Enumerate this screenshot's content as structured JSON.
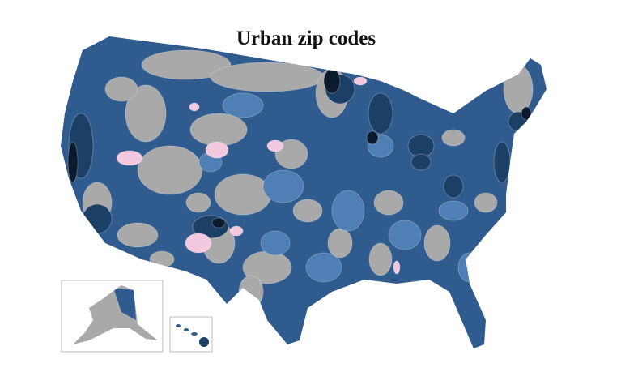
{
  "title": "Urban zip codes"
}
